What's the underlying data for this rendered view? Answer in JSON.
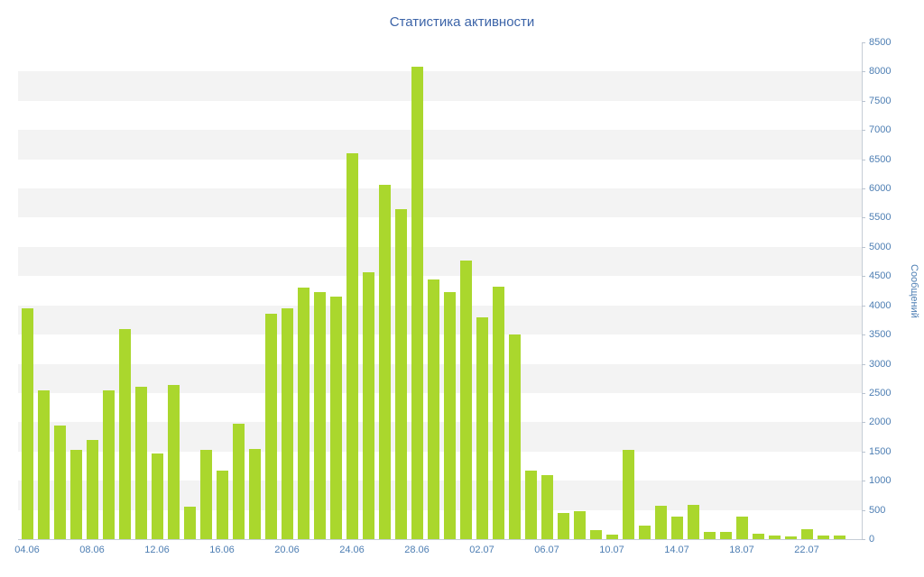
{
  "chart": {
    "title": "Статистика активности",
    "y_axis_title": "Сообщений",
    "colors": {
      "bar": "#aad72d",
      "title": "#3c64a8",
      "axis_label": "#4d7eb3",
      "band": "#f3f3f3",
      "axis_line": "#c6cdd6"
    }
  },
  "chart_data": {
    "type": "bar",
    "title": "Статистика активности",
    "xlabel": "",
    "ylabel": "Сообщений",
    "ylim": [
      0,
      8500
    ],
    "y_tick_step": 500,
    "grid": "alternating-horizontal-bands",
    "legend": false,
    "bar_color": "#aad72d",
    "categories": [
      "04.06",
      "05.06",
      "06.06",
      "07.06",
      "08.06",
      "09.06",
      "10.06",
      "11.06",
      "12.06",
      "13.06",
      "14.06",
      "15.06",
      "16.06",
      "17.06",
      "18.06",
      "19.06",
      "20.06",
      "21.06",
      "22.06",
      "23.06",
      "24.06",
      "25.06",
      "26.06",
      "27.06",
      "28.06",
      "29.06",
      "30.06",
      "01.07",
      "02.07",
      "03.07",
      "04.07",
      "05.07",
      "06.07",
      "07.07",
      "08.07",
      "09.07",
      "10.07",
      "11.07",
      "12.07",
      "13.07",
      "14.07",
      "15.07",
      "16.07",
      "17.07",
      "18.07",
      "19.07",
      "20.07",
      "21.07",
      "22.07",
      "23.07",
      "24.07"
    ],
    "values": [
      3950,
      2550,
      1950,
      1530,
      1700,
      2550,
      3600,
      2600,
      1470,
      2640,
      550,
      1530,
      1180,
      1970,
      1550,
      3850,
      3950,
      4300,
      4220,
      4150,
      6600,
      4560,
      6060,
      5650,
      8090,
      4450,
      4220,
      4760,
      3790,
      4320,
      3500,
      1170,
      1100,
      450,
      480,
      150,
      80,
      1520,
      230,
      570,
      380,
      590,
      120,
      130,
      390,
      100,
      60,
      40,
      170,
      60,
      60
    ],
    "x_tick_labels": [
      "04.06",
      "08.06",
      "12.06",
      "16.06",
      "20.06",
      "24.06",
      "28.06",
      "02.07",
      "06.07",
      "10.07",
      "14.07",
      "18.07",
      "22.07"
    ],
    "x_tick_every": 4,
    "y_tick_labels": [
      "0",
      "500",
      "1000",
      "1500",
      "2000",
      "2500",
      "3000",
      "3500",
      "4000",
      "4500",
      "5000",
      "5500",
      "6000",
      "6500",
      "7000",
      "7500",
      "8000",
      "8500"
    ]
  }
}
